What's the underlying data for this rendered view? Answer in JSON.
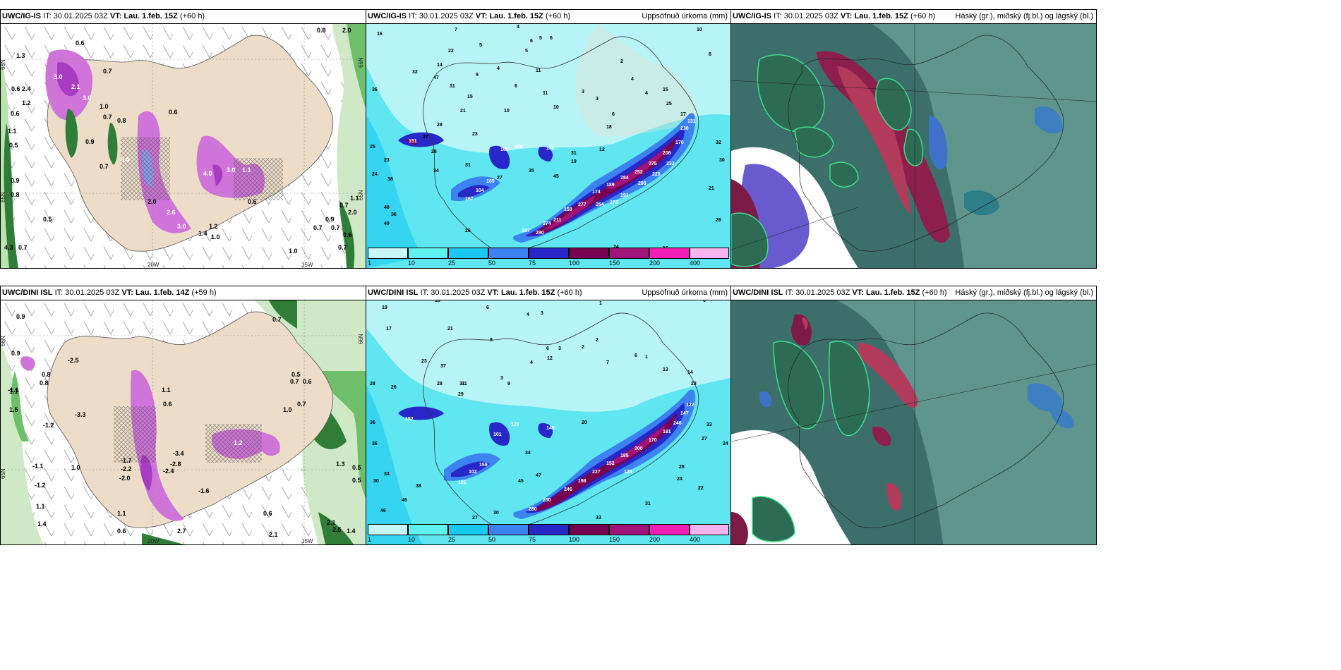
{
  "panels": [
    {
      "id": "p1",
      "model": "UWC/IG-IS",
      "it_label": "IT:",
      "it": "30.01.2025 03Z",
      "vt_label": "VT:",
      "vt": "Lau. 1.feb. 15Z",
      "lead": "(+60 h)",
      "right": ""
    },
    {
      "id": "p2",
      "model": "UWC/IG-IS",
      "it_label": "IT:",
      "it": "30.01.2025 03Z",
      "vt_label": "VT:",
      "vt": "Lau. 1.feb. 15Z",
      "lead": "(+60 h)",
      "right": "Uppsöfnuð úrkoma (mm)"
    },
    {
      "id": "p3",
      "model": "UWC/IG-IS",
      "it_label": "IT:",
      "it": "30.01.2025 03Z",
      "vt_label": "VT:",
      "vt": "Lau. 1.feb. 15Z",
      "lead": "(+60 h)",
      "right": "Háský (gr.), miðský (fj.bl.) og lágský (bl.)"
    },
    {
      "id": "p4",
      "model": "UWC/DINI ISL",
      "it_label": "IT:",
      "it": "30.01.2025 03Z",
      "vt_label": "VT:",
      "vt": "Lau. 1.feb. 14Z",
      "lead": "(+59 h)",
      "right": ""
    },
    {
      "id": "p5",
      "model": "UWC/DINI ISL",
      "it_label": "IT:",
      "it": "30.01.2025 03Z",
      "vt_label": "VT:",
      "vt": "Lau. 1.feb. 15Z",
      "lead": "(+60 h)",
      "right": "Uppsöfnuð úrkoma (mm)"
    },
    {
      "id": "p6",
      "model": "UWC/DINI ISL",
      "it_label": "IT:",
      "it": "30.01.2025 03Z",
      "vt_label": "VT:",
      "vt": "Lau. 1.feb. 15Z",
      "lead": "(+60 h)",
      "right": "Háský (gr.), miðský (fj.bl.) og lágský (bl.)"
    }
  ],
  "colorbar": {
    "ticks": [
      "1",
      "10",
      "25",
      "50",
      "75",
      "100",
      "150",
      "200",
      "400"
    ],
    "colors": [
      "#c8f7f7",
      "#5ff0f0",
      "#19c8f0",
      "#3c82f0",
      "#2828c8",
      "#780050",
      "#a0147a",
      "#f01eb4",
      "#f8b4f0"
    ]
  },
  "lon_labels": {
    "w20": "20W",
    "w15": "15W"
  },
  "lat_labels": {
    "n66": "66N",
    "n65": "65N"
  },
  "wind_labels_top": [
    "0.8",
    "2.0",
    "0.6",
    "1.3",
    "3.0",
    "2.1",
    "3.0",
    "0.7",
    "0.6",
    "1.2",
    "2.4",
    "0.6",
    "1.0",
    "0.8",
    "0.7",
    "0.9",
    "0.5",
    "1.1",
    "0.9",
    "0.8",
    "0.5",
    "0.7",
    "3.5",
    "4.3",
    "0.7",
    "4.0",
    "3.0",
    "1.1",
    "0.6",
    "2.0",
    "2.6",
    "3.0",
    "1.4",
    "1.2",
    "1.0",
    "0.6",
    "0.7",
    "0.9",
    "0.7",
    "0.6",
    "0.7",
    "1.0",
    "0.7",
    "2.0",
    "1.1"
  ],
  "wind_labels_bottom": [
    "0.9",
    "0.7",
    "-2.5",
    "1.1",
    "0.9",
    "0.8",
    "-1.1",
    "1.5",
    "0.6",
    "0.8",
    "-1.2",
    "-3.3",
    "1.1",
    "-3.4",
    "-2.4",
    "-2.8",
    "-1.6",
    "1.0",
    "1.2",
    "0.5",
    "0.7",
    "0.6",
    "-1.1",
    "-1.2",
    "-1.7",
    "-2.2",
    "-2.0",
    "1.0",
    "0.7",
    "1.3",
    "0.5",
    "0.5",
    "2.1",
    "2.5",
    "1.4",
    "1.1",
    "0.6",
    "0.6",
    "1.4",
    "1.1",
    "2.7",
    "2.1"
  ],
  "precip_labels_top": [
    "16",
    "7",
    "4",
    "10",
    "5",
    "6",
    "5",
    "6",
    "5",
    "8",
    "22",
    "32",
    "47",
    "4",
    "11",
    "3",
    "2",
    "4",
    "4",
    "15",
    "31",
    "9",
    "6",
    "10",
    "11",
    "10",
    "3",
    "6",
    "21",
    "15",
    "28",
    "36",
    "27",
    "25",
    "23",
    "24",
    "28",
    "34",
    "38",
    "35",
    "31",
    "27",
    "23",
    "31",
    "45",
    "25",
    "32",
    "30",
    "21",
    "26",
    "17",
    "18",
    "19",
    "12",
    "14",
    "29",
    "24",
    "16",
    "48",
    "36",
    "49",
    "26",
    "24",
    "105",
    "108",
    "138",
    "151",
    "167",
    "104",
    "185",
    "187",
    "274",
    "280",
    "174",
    "189",
    "284",
    "252",
    "275",
    "277",
    "158",
    "191",
    "206",
    "170",
    "211",
    "290",
    "225",
    "254",
    "273",
    "233",
    "230",
    "131"
  ],
  "precip_labels_bottom": [
    "19",
    "15",
    "6",
    "4",
    "3",
    "1",
    "6",
    "17",
    "21",
    "8",
    "2",
    "12",
    "4",
    "6",
    "3",
    "6",
    "2",
    "7",
    "1",
    "37",
    "13",
    "3",
    "31",
    "14",
    "23",
    "26",
    "28",
    "33",
    "28",
    "36",
    "9",
    "36",
    "34",
    "30",
    "31",
    "29",
    "23",
    "46",
    "38",
    "46",
    "25",
    "41",
    "32",
    "27",
    "30",
    "34",
    "47",
    "45",
    "33",
    "31",
    "28",
    "24",
    "22",
    "24",
    "27",
    "33",
    "20",
    "152",
    "102",
    "161",
    "145",
    "170",
    "230",
    "246",
    "198",
    "227",
    "152",
    "185",
    "200",
    "170",
    "280",
    "181",
    "246",
    "147",
    "122",
    "161",
    "159",
    "128"
  ],
  "cloud_legend": "Háský (gr.), miðský (fj.bl.) og lágský (bl.)"
}
